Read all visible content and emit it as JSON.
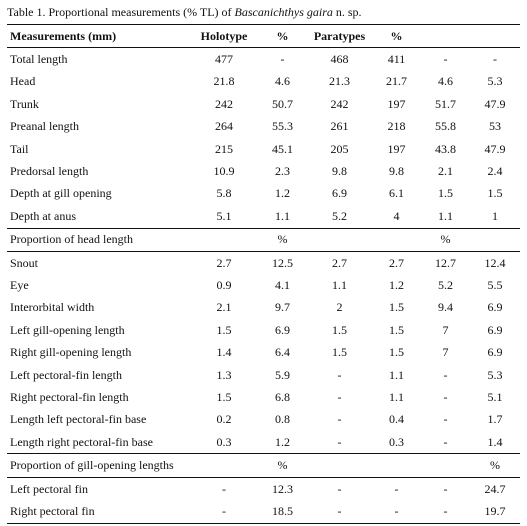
{
  "caption": {
    "prefix": "Table 1. Proportional measurements (% TL) of ",
    "species": "Bascanichthys gaira",
    "suffix": " n. sp."
  },
  "header": [
    "Measurements (mm)",
    "Holotype",
    "%",
    "Paratypes",
    "%",
    "",
    ""
  ],
  "section1_rows": [
    [
      "Total length",
      "477",
      "-",
      "468",
      "411",
      "-",
      "-"
    ],
    [
      "Head",
      "21.8",
      "4.6",
      "21.3",
      "21.7",
      "4.6",
      "5.3"
    ],
    [
      "Trunk",
      "242",
      "50.7",
      "242",
      "197",
      "51.7",
      "47.9"
    ],
    [
      "Preanal length",
      "264",
      "55.3",
      "261",
      "218",
      "55.8",
      "53"
    ],
    [
      "Tail",
      "215",
      "45.1",
      "205",
      "197",
      "43.8",
      "47.9"
    ],
    [
      "Predorsal length",
      "10.9",
      "2.3",
      "9.8",
      "9.8",
      "2.1",
      "2.4"
    ],
    [
      "Depth at gill opening",
      "5.8",
      "1.2",
      "6.9",
      "6.1",
      "1.5",
      "1.5"
    ],
    [
      "Depth at anus",
      "5.1",
      "1.1",
      "5.2",
      "4",
      "1.1",
      "1"
    ]
  ],
  "section2_header": [
    "Proportion of head length",
    "",
    "%",
    "",
    "",
    "%",
    ""
  ],
  "section2_rows": [
    [
      "Snout",
      "2.7",
      "12.5",
      "2.7",
      "2.7",
      "12.7",
      "12.4"
    ],
    [
      "Eye",
      "0.9",
      "4.1",
      "1.1",
      "1.2",
      "5.2",
      "5.5"
    ],
    [
      "Interorbital width",
      "2.1",
      "9.7",
      "2",
      "1.5",
      "9.4",
      "6.9"
    ],
    [
      "Left gill-opening length",
      "1.5",
      "6.9",
      "1.5",
      "1.5",
      "7",
      "6.9"
    ],
    [
      "Right gill-opening length",
      "1.4",
      "6.4",
      "1.5",
      "1.5",
      "7",
      "6.9"
    ],
    [
      "Left pectoral-fin length",
      "1.3",
      "5.9",
      "-",
      "1.1",
      "-",
      "5.3"
    ],
    [
      "Right pectoral-fin length",
      "1.5",
      "6.8",
      "-",
      "1.1",
      "-",
      "5.1"
    ],
    [
      "Length left pectoral-fin base",
      "0.2",
      "0.8",
      "-",
      "0.4",
      "-",
      "1.7"
    ],
    [
      "Length right pectoral-fin base",
      "0.3",
      "1.2",
      "-",
      "0.3",
      "-",
      "1.4"
    ]
  ],
  "section3_header": [
    "Proportion of gill-opening lengths",
    "",
    "%",
    "",
    "",
    "",
    "%"
  ],
  "section3_rows": [
    [
      "Left pectoral fin",
      "-",
      "12.3",
      "-",
      "-",
      "-",
      "24.7"
    ],
    [
      "Right pectoral fin",
      "-",
      "18.5",
      "-",
      "-",
      "-",
      "19.7"
    ]
  ]
}
